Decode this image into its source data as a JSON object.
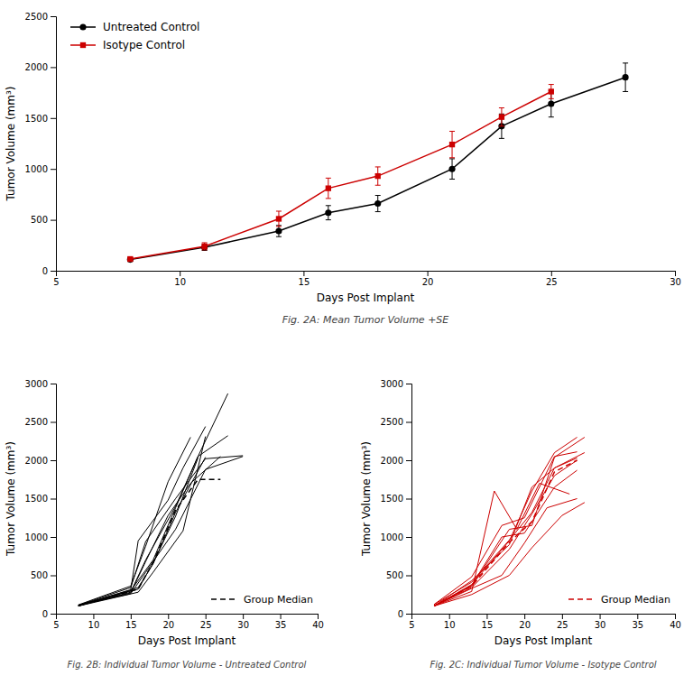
{
  "chart_data": [
    {
      "type": "line",
      "caption": "Fig. 2A: Mean Tumor Volume +SE",
      "xlabel": "Days Post Implant",
      "ylabel": "Tumor Volume (mm³)",
      "xlim": [
        5,
        30
      ],
      "ylim": [
        0,
        2500
      ],
      "xticks": [
        5,
        10,
        15,
        20,
        25,
        30
      ],
      "yticks": [
        0,
        500,
        1000,
        1500,
        2000,
        2500
      ],
      "legend": "upper left",
      "series": [
        {
          "name": "Untreated Control",
          "color": "#000000",
          "marker": "circle",
          "x": [
            8,
            11,
            14,
            16,
            18,
            21,
            23,
            25,
            28
          ],
          "values": [
            110,
            230,
            390,
            570,
            660,
            1000,
            1420,
            1640,
            1900
          ],
          "error": [
            15,
            30,
            55,
            70,
            80,
            100,
            120,
            130,
            140
          ]
        },
        {
          "name": "Isotype Control",
          "color": "#cc0000",
          "marker": "square",
          "x": [
            8,
            11,
            14,
            16,
            18,
            21,
            23,
            25
          ],
          "values": [
            115,
            240,
            510,
            810,
            930,
            1240,
            1510,
            1760
          ],
          "error": [
            15,
            35,
            75,
            100,
            90,
            130,
            90,
            70
          ]
        }
      ]
    },
    {
      "type": "line",
      "caption": "Fig. 2B: Individual Tumor Volume - Untreated Control",
      "xlabel": "Days Post Implant",
      "ylabel": "Tumor Volume (mm³)",
      "xlim": [
        5,
        40
      ],
      "ylim": [
        0,
        3000
      ],
      "xticks": [
        5,
        10,
        15,
        20,
        25,
        30,
        35,
        40
      ],
      "yticks": [
        0,
        500,
        1000,
        1500,
        2000,
        2500,
        3000
      ],
      "legend": "lower right",
      "series": [
        {
          "color": "#000000",
          "x": [
            8,
            15,
            17,
            21,
            24,
            28
          ],
          "values": [
            100,
            280,
            700,
            1400,
            2050,
            2870
          ]
        },
        {
          "color": "#000000",
          "x": [
            8,
            15,
            18,
            21,
            24,
            28
          ],
          "values": [
            100,
            300,
            700,
            1380,
            2050,
            2320
          ]
        },
        {
          "color": "#000000",
          "x": [
            8,
            15,
            17,
            21,
            25,
            30
          ],
          "values": [
            110,
            340,
            940,
            1500,
            2020,
            2060
          ]
        },
        {
          "color": "#000000",
          "x": [
            8,
            15,
            17,
            21,
            25,
            30
          ],
          "values": [
            110,
            260,
            540,
            1100,
            1880,
            2050
          ]
        },
        {
          "color": "#000000",
          "x": [
            8,
            15,
            16,
            20,
            22,
            25
          ],
          "values": [
            100,
            310,
            950,
            1480,
            1900,
            2440
          ]
        },
        {
          "color": "#000000",
          "x": [
            8,
            15,
            17,
            20,
            23,
            27
          ],
          "values": [
            110,
            270,
            680,
            1280,
            1700,
            2050
          ]
        },
        {
          "color": "#000000",
          "x": [
            8,
            16,
            18,
            21,
            24
          ],
          "values": [
            110,
            320,
            660,
            1270,
            2030
          ]
        },
        {
          "color": "#000000",
          "x": [
            8,
            16,
            18,
            21,
            25
          ],
          "values": [
            110,
            340,
            650,
            1320,
            2040
          ]
        },
        {
          "color": "#000000",
          "x": [
            8,
            16,
            18,
            22,
            25
          ],
          "values": [
            100,
            280,
            540,
            1080,
            2310
          ]
        },
        {
          "color": "#000000",
          "x": [
            8,
            15,
            17,
            20,
            23
          ],
          "values": [
            115,
            360,
            880,
            1720,
            2300
          ]
        },
        {
          "name": "Group Median",
          "color": "#000000",
          "line_style": "dashed",
          "x": [
            8,
            16,
            18,
            21,
            24,
            27
          ],
          "values": [
            105,
            320,
            670,
            1350,
            1750,
            1750
          ]
        }
      ]
    },
    {
      "type": "line",
      "caption": "Fig. 2C: Individual Tumor Volume - Isotype Control",
      "xlabel": "Days Post Implant",
      "ylabel": "Tumor Volume (mm³)",
      "xlim": [
        5,
        40
      ],
      "ylim": [
        0,
        3000
      ],
      "xticks": [
        5,
        10,
        15,
        20,
        25,
        30,
        35,
        40
      ],
      "yticks": [
        0,
        500,
        1000,
        1500,
        2000,
        2500,
        3000
      ],
      "legend": "lower right",
      "series": [
        {
          "color": "#cc0000",
          "x": [
            8,
            13,
            18,
            21,
            24,
            27
          ],
          "values": [
            100,
            380,
            950,
            1600,
            2100,
            2300
          ]
        },
        {
          "color": "#cc0000",
          "x": [
            8,
            13,
            18,
            21,
            24,
            28
          ],
          "values": [
            100,
            360,
            1100,
            1150,
            2040,
            2300
          ]
        },
        {
          "color": "#cc0000",
          "x": [
            8,
            13,
            18,
            21,
            24,
            28
          ],
          "values": [
            100,
            430,
            900,
            1650,
            1900,
            2100
          ]
        },
        {
          "color": "#cc0000",
          "x": [
            8,
            13,
            17,
            20,
            24,
            27
          ],
          "values": [
            120,
            480,
            1150,
            1250,
            2050,
            2110
          ]
        },
        {
          "color": "#cc0000",
          "x": [
            8,
            13,
            17,
            20,
            24,
            27
          ],
          "values": [
            100,
            370,
            1000,
            1050,
            1650,
            1870
          ]
        },
        {
          "color": "#cc0000",
          "x": [
            8,
            13,
            16,
            19,
            22,
            26
          ],
          "values": [
            100,
            290,
            1600,
            1100,
            1700,
            1560
          ]
        },
        {
          "color": "#cc0000",
          "x": [
            8,
            13,
            17,
            20,
            23,
            27
          ],
          "values": [
            100,
            330,
            500,
            920,
            1380,
            1500
          ]
        },
        {
          "color": "#cc0000",
          "x": [
            8,
            13,
            18,
            21,
            25,
            28
          ],
          "values": [
            100,
            250,
            500,
            860,
            1280,
            1450
          ]
        },
        {
          "color": "#cc0000",
          "x": [
            8,
            13,
            18,
            21,
            24,
            27
          ],
          "values": [
            120,
            410,
            960,
            1320,
            1900,
            2030
          ]
        },
        {
          "color": "#cc0000",
          "x": [
            8,
            13,
            18,
            21,
            24,
            27
          ],
          "values": [
            100,
            340,
            840,
            1300,
            1800,
            2000
          ]
        },
        {
          "name": "Group Median",
          "color": "#cc0000",
          "line_style": "dashed",
          "x": [
            8,
            13,
            18,
            21,
            24,
            27
          ],
          "values": [
            100,
            360,
            930,
            1200,
            1850,
            2000
          ]
        }
      ]
    }
  ]
}
